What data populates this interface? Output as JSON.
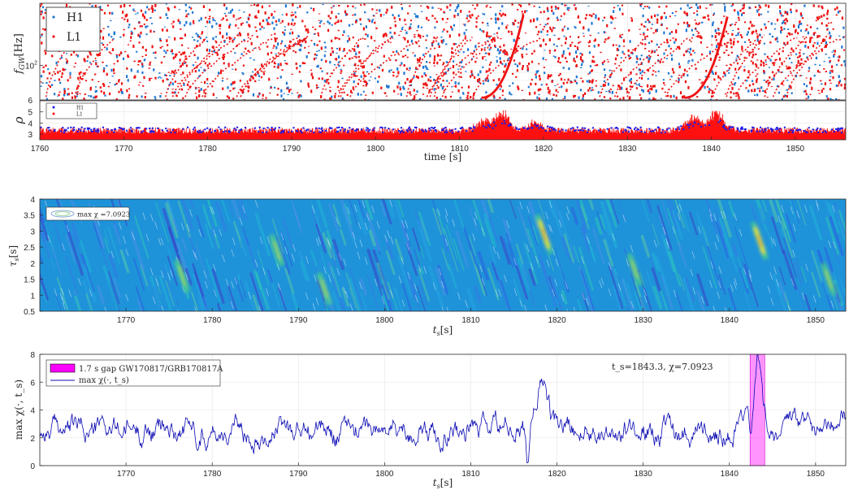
{
  "chart_data": [
    {
      "type": "scatter",
      "panel": "frequency-tracks",
      "ylabel": "f_GW [Hz]",
      "ylabel_italic": "f",
      "ylabel_sub": "GW",
      "ylabel_unit": "[Hz]",
      "yscale": "log",
      "ylim": [
        60,
        250
      ],
      "yticks": [
        {
          "value": 100,
          "label": "10",
          "sup": "2"
        }
      ],
      "xlim": [
        1760,
        1856
      ],
      "legend": {
        "placement": "top-left",
        "entries": [
          "H1",
          "L1"
        ]
      },
      "colors": {
        "H1": "#1f77d4",
        "L1": "#ee1111"
      },
      "chirp_tracks": [
        {
          "t_start": 1812.6,
          "t_end": 1817.6,
          "f_start": 62,
          "f_end": 210
        },
        {
          "t_start": 1836.8,
          "t_end": 1841.9,
          "f_start": 62,
          "f_end": 205
        }
      ]
    },
    {
      "type": "scatter",
      "panel": "snr",
      "ylabel": "ρ",
      "ylim": [
        2.5,
        6
      ],
      "yticks": [
        3,
        4,
        5,
        6
      ],
      "xlim": [
        1760,
        1856
      ],
      "xticks": [
        1760,
        1770,
        1780,
        1790,
        1800,
        1810,
        1820,
        1830,
        1840,
        1850
      ],
      "xlabel": "time [s]",
      "legend": {
        "placement": "top-left",
        "entries": [
          "H1",
          "L1"
        ]
      },
      "colors": {
        "H1": "#1a1ae6",
        "L1": "#ff1010"
      },
      "peaks": [
        {
          "t": 1815.0,
          "rho": 5.1
        },
        {
          "t": 1813.0,
          "rho": 4.3
        },
        {
          "t": 1819.0,
          "rho": 4.0
        },
        {
          "t": 1838.0,
          "rho": 4.6
        },
        {
          "t": 1840.5,
          "rho": 5.1
        }
      ]
    },
    {
      "type": "heatmap",
      "panel": "chi-map",
      "xlabel": "t_s[s]",
      "ylabel": "τ_s[s]",
      "xlim": [
        1760,
        1853.5
      ],
      "ylim": [
        0.5,
        4
      ],
      "xticks": [
        1770,
        1780,
        1790,
        1800,
        1810,
        1820,
        1830,
        1840,
        1850
      ],
      "yticks": [
        0.5,
        1,
        1.5,
        2,
        2.5,
        3,
        3.5,
        4
      ],
      "legend": {
        "placement": "top-left",
        "entries": [
          "max χ =7.0923"
        ]
      },
      "hotspots": [
        {
          "ts": 1818.5,
          "tau": 2.9,
          "level": 1.0
        },
        {
          "ts": 1843.5,
          "tau": 2.7,
          "level": 0.85
        },
        {
          "ts": 1776.5,
          "tau": 1.6,
          "level": 0.5
        },
        {
          "ts": 1793.0,
          "tau": 1.2,
          "level": 0.45
        },
        {
          "ts": 1787.5,
          "tau": 2.4,
          "level": 0.4
        },
        {
          "ts": 1829.0,
          "tau": 1.8,
          "level": 0.4
        },
        {
          "ts": 1851.5,
          "tau": 1.5,
          "level": 0.45
        }
      ]
    },
    {
      "type": "line",
      "panel": "max-chi",
      "xlabel": "t_s[s]",
      "ylabel": "max χ(·, t_s)",
      "xlim": [
        1760,
        1853.5
      ],
      "ylim": [
        0,
        8
      ],
      "xticks": [
        1770,
        1780,
        1790,
        1800,
        1810,
        1820,
        1830,
        1840,
        1850
      ],
      "yticks": [
        0,
        2,
        4,
        6,
        8
      ],
      "legend": {
        "placement": "top-left",
        "entries": [
          "1.7 s gap GW170817/GRB170817A",
          "max χ(·, t_s)"
        ]
      },
      "annotation": "t_s=1843.3, χ=7.0923",
      "gap_band": {
        "start": 1842.4,
        "end": 1844.1,
        "color": "#ff00ff"
      },
      "series_color": "#0b0bb3",
      "baseline": 2.6,
      "peaks": [
        {
          "t": 1818.3,
          "value": 6.6,
          "width": 0.8
        },
        {
          "t": 1843.3,
          "value": 7.0923,
          "width": 0.5
        }
      ],
      "dips": [
        {
          "t": 1816.6,
          "value": 0.5
        },
        {
          "t": 1842.5,
          "value": 1.2
        }
      ]
    }
  ]
}
